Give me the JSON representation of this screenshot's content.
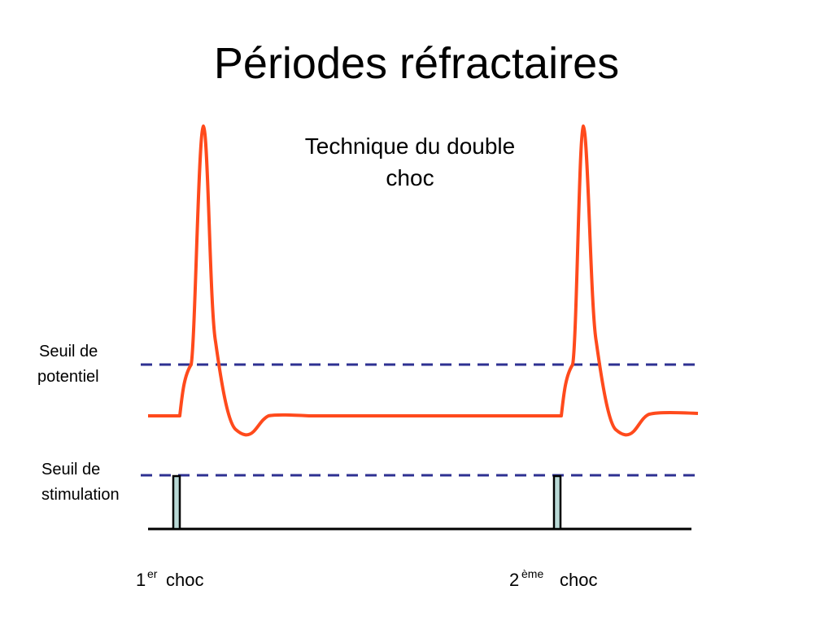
{
  "title": "Périodes réfractaires",
  "subtitle": [
    "Technique du double",
    "choc"
  ],
  "labels": {
    "potential_threshold": [
      "Seuil de",
      "potentiel"
    ],
    "stimulation_threshold": [
      "Seuil de",
      "stimulation"
    ]
  },
  "shocks": [
    {
      "number": "1",
      "suffix": "er",
      "text": "choc"
    },
    {
      "number": "2",
      "suffix": "ème",
      "text": "choc"
    }
  ]
}
